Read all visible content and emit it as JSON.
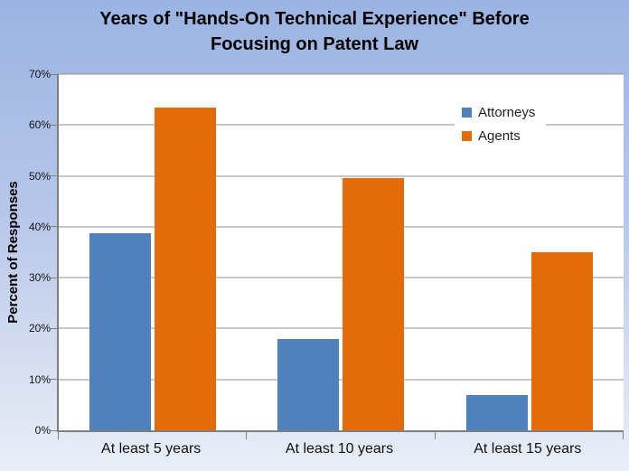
{
  "page": {
    "background_gradient": [
      "#9ab4e2",
      "#b7c6e9",
      "#dde4f2",
      "#e9eef8"
    ],
    "plot_background": "#ffffff",
    "grid_color": "#8f8f8f",
    "axis_color": "#7f7f7f"
  },
  "chart_data": {
    "type": "bar",
    "title": "Years of \"Hands-On Technical Experience\" Before Focusing on Patent Law",
    "title_lines": [
      "Years of \"Hands-On Technical Experience\" Before",
      "Focusing on Patent Law"
    ],
    "categories": [
      "At least 5 years",
      "At least 10 years",
      "At least 15 years"
    ],
    "series": [
      {
        "name": "Attorneys",
        "color": "#4f81bd",
        "values": [
          38.7,
          18,
          7
        ]
      },
      {
        "name": "Agents",
        "color": "#e36c09",
        "values": [
          63.5,
          49.5,
          35
        ]
      }
    ],
    "xlabel": "",
    "ylabel": "Percent of Responses",
    "ylim": [
      0,
      70
    ],
    "y_tick_step": 10,
    "y_tick_labels": [
      "0%",
      "10%",
      "20%",
      "30%",
      "40%",
      "50%",
      "60%",
      "70%"
    ],
    "grid": true,
    "legend_position": "inside-upper-right",
    "legend_entries": [
      "Attorneys",
      "Agents"
    ]
  }
}
